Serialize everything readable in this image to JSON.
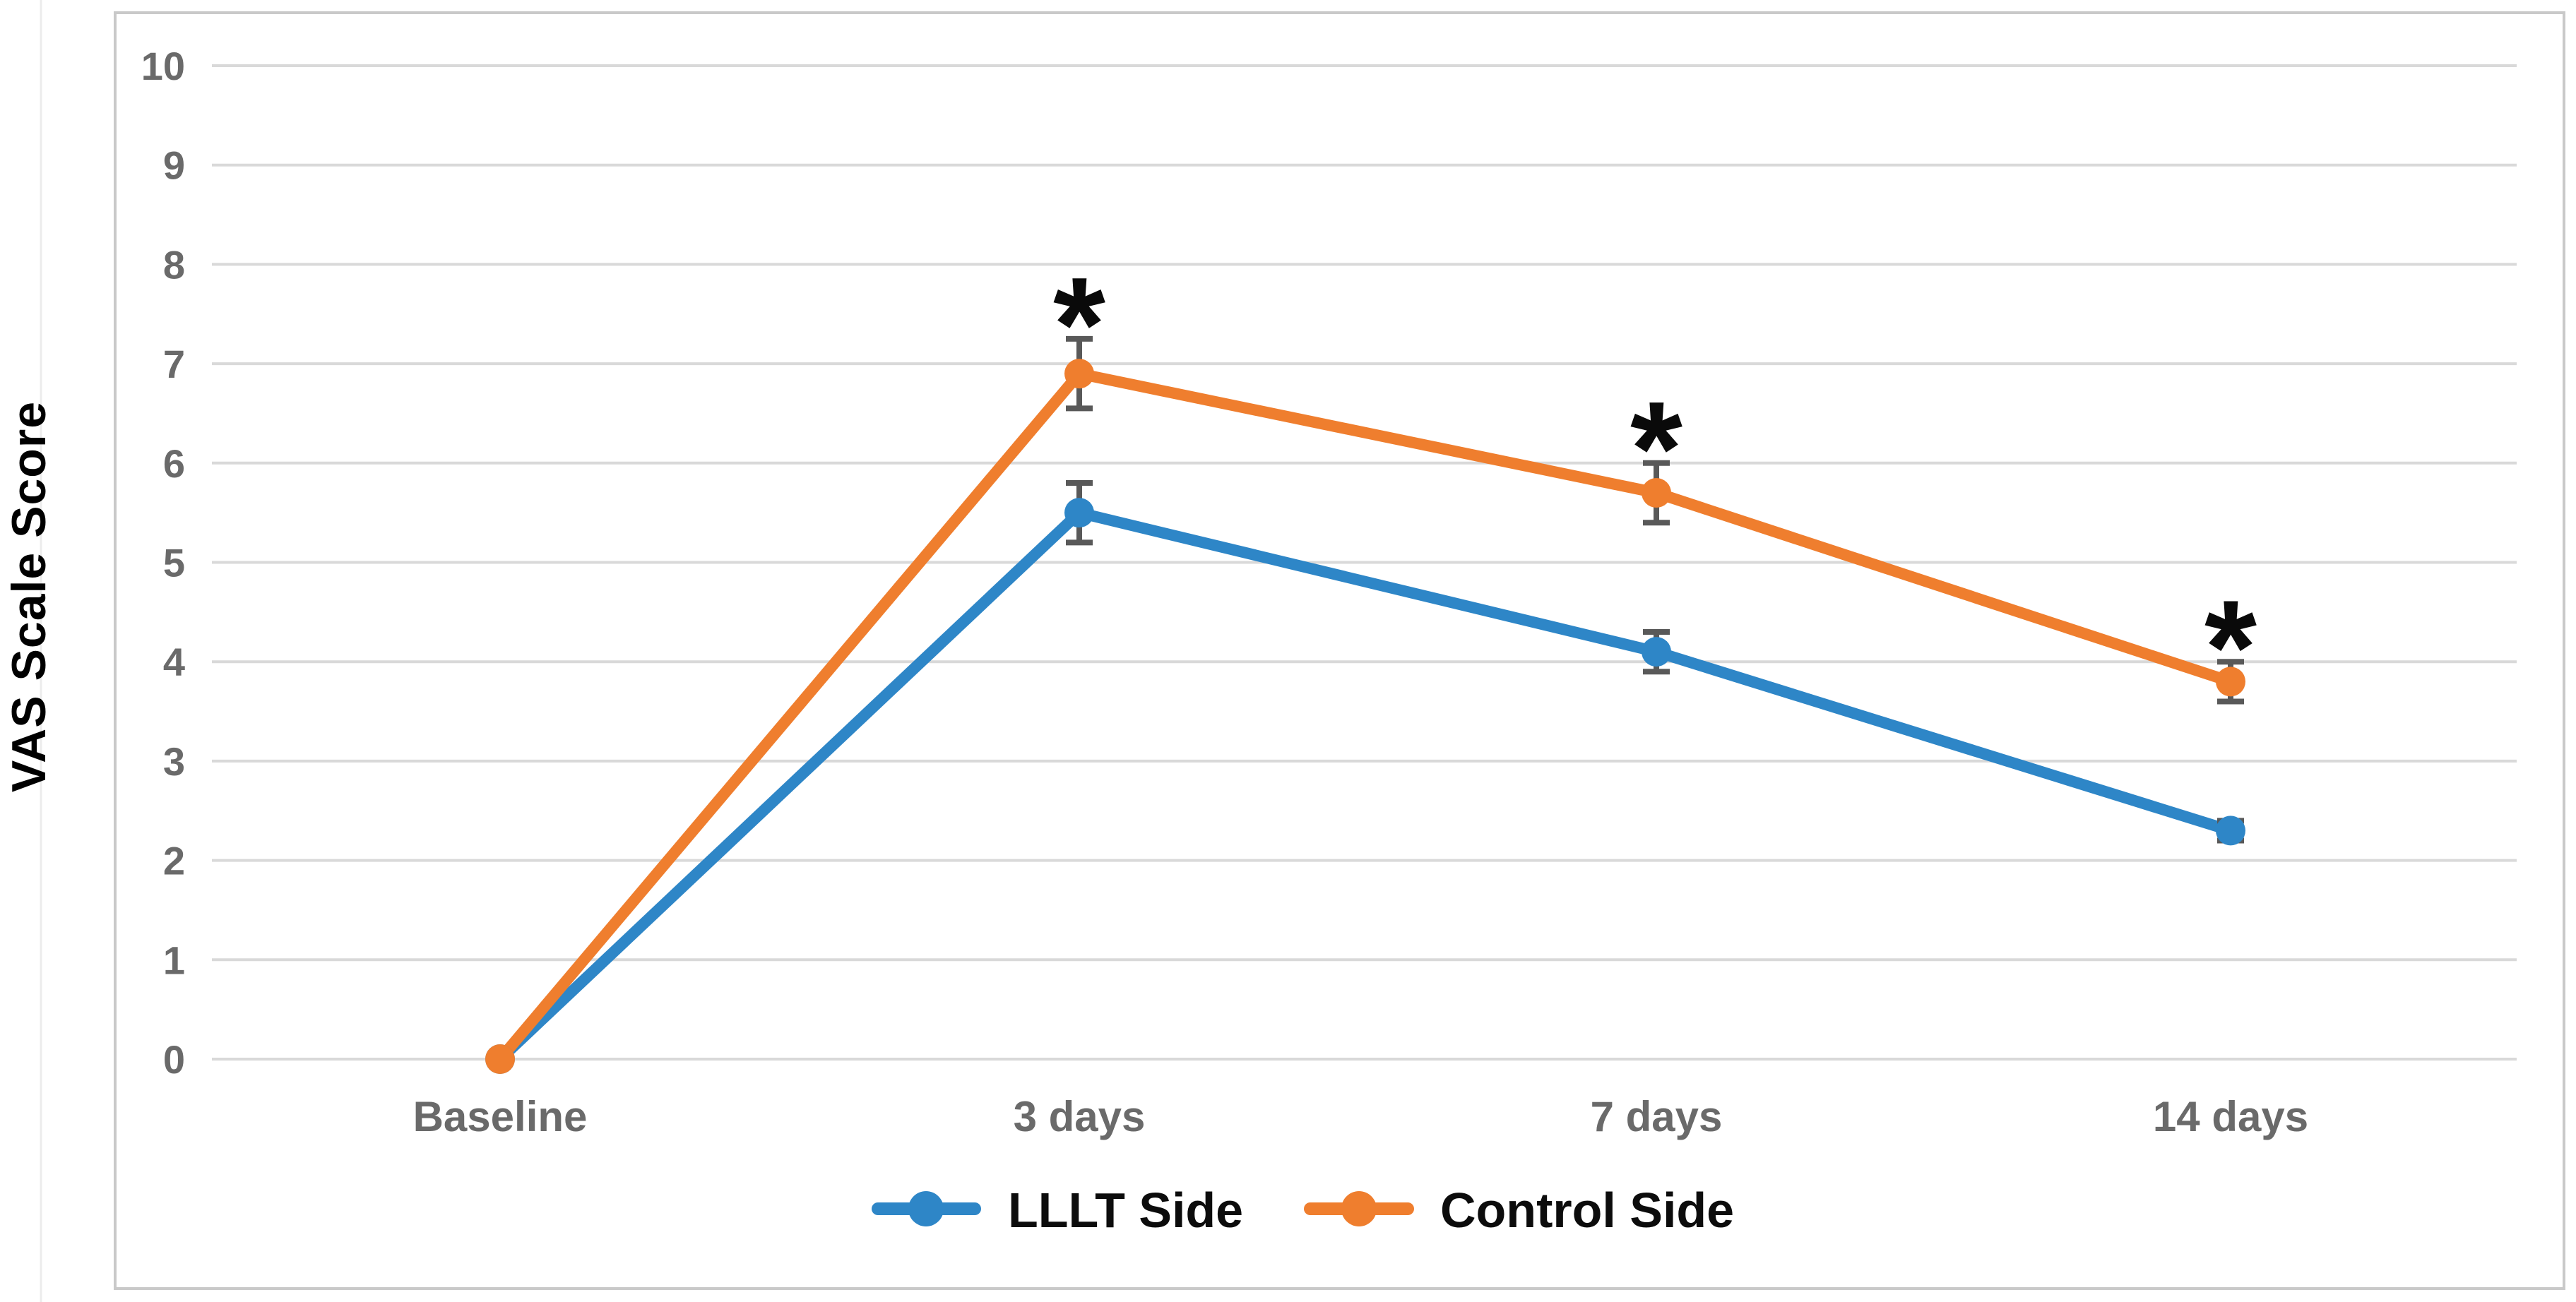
{
  "figure": {
    "background_color": "#FFFFFF"
  },
  "chart_data": {
    "type": "line",
    "title": "",
    "ylabel": "VAS Scale Score",
    "xlabel": "",
    "ylim": [
      0,
      10
    ],
    "yticks": [
      0,
      1,
      2,
      3,
      4,
      5,
      6,
      7,
      8,
      9,
      10
    ],
    "grid": true,
    "grid_axis": "y",
    "legend_position": "bottom-center",
    "categories": [
      "Baseline",
      "3 days",
      "7 days",
      "14 days"
    ],
    "series": [
      {
        "name": "LLLT Side",
        "color": "#2E86C7",
        "marker": "circle",
        "values": [
          0,
          5.5,
          4.1,
          2.3
        ],
        "error_plus_minus": [
          0,
          0.3,
          0.2,
          0.1
        ]
      },
      {
        "name": "Control Side",
        "color": "#EF7E2E",
        "marker": "circle",
        "values": [
          0,
          6.9,
          5.7,
          3.8
        ],
        "error_plus_minus": [
          0,
          0.35,
          0.3,
          0.2
        ]
      }
    ],
    "annotations": [
      {
        "text": "*",
        "series": "Control Side",
        "category": "3 days"
      },
      {
        "text": "*",
        "series": "Control Side",
        "category": "7 days"
      },
      {
        "text": "*",
        "series": "Control Side",
        "category": "14 days"
      }
    ],
    "style": {
      "gridline_color": "#D9D9D9",
      "frame_color": "#C9C9C9",
      "edge_line_color": "#ECECEC",
      "error_bar_color": "#595959",
      "tick_label_color": "#6A6A6A",
      "category_label_color": "#6A6A6A",
      "axis_title_color": "#000000",
      "legend_text_color": "#0C0C0C",
      "annotation_color": "#0A0A0A"
    }
  }
}
